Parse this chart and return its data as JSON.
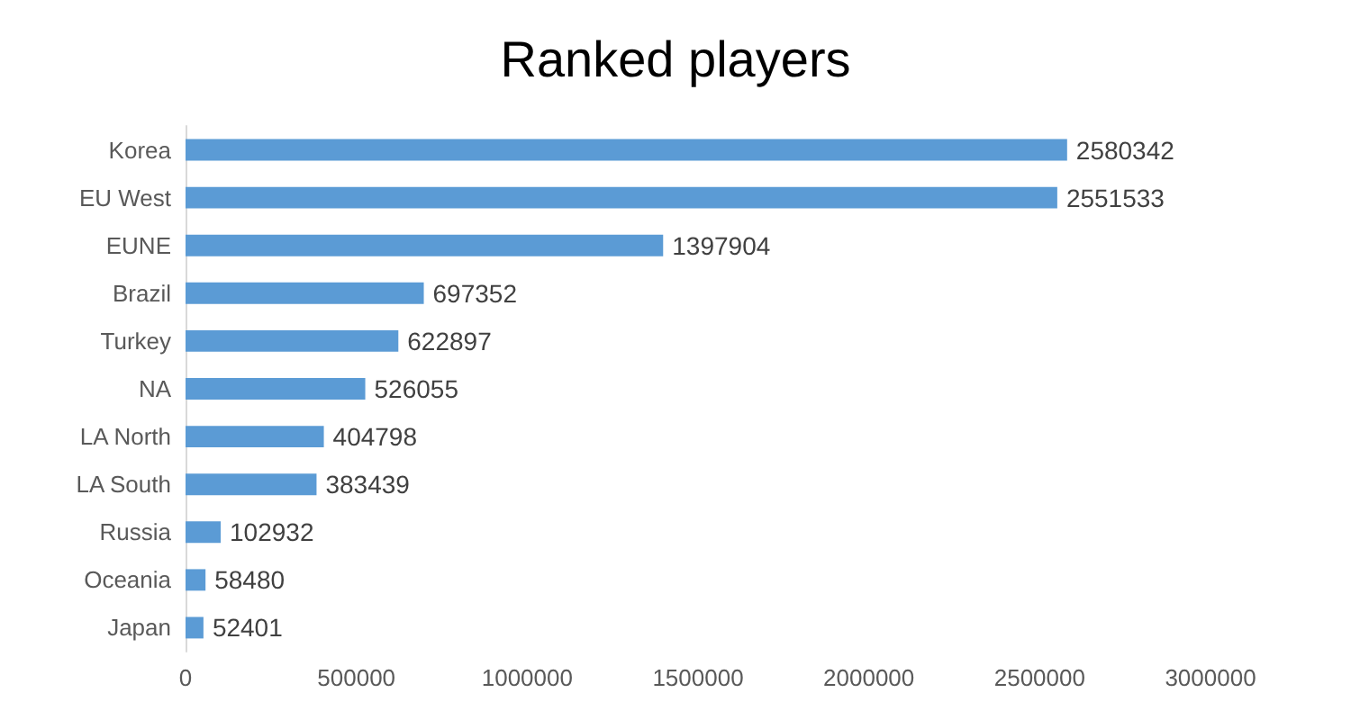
{
  "chart_data": {
    "type": "bar",
    "orientation": "horizontal",
    "title": "Ranked players",
    "categories": [
      "Korea",
      "EU West",
      "EUNE",
      "Brazil",
      "Turkey",
      "NA",
      "LA North",
      "LA South",
      "Russia",
      "Oceania",
      "Japan"
    ],
    "values": [
      2580342,
      2551533,
      1397904,
      697352,
      622897,
      526055,
      404798,
      383439,
      102932,
      58480,
      52401
    ],
    "color": "#5b9bd5",
    "data_labels": true,
    "xlim": [
      0,
      3000000
    ],
    "xticks": [
      0,
      500000,
      1000000,
      1500000,
      2000000,
      2500000,
      3000000
    ],
    "grid": false
  }
}
